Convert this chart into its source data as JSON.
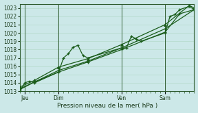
{
  "xlabel": "Pression niveau de la mer( hPa )",
  "bg_color": "#cce8e8",
  "grid_color": "#aaddcc",
  "line_color": "#1a5c1a",
  "ylim": [
    1013,
    1023.5
  ],
  "ytick_vals": [
    1013,
    1014,
    1015,
    1016,
    1017,
    1018,
    1019,
    1020,
    1021,
    1022,
    1023
  ],
  "xlim": [
    0,
    108
  ],
  "day_labels": [
    "Jeu",
    "Dim",
    "Ven",
    "Sam"
  ],
  "day_positions": [
    3,
    24,
    63,
    90
  ],
  "series1_x": [
    0,
    3,
    6,
    9,
    24,
    27,
    30,
    33,
    36,
    39,
    42,
    63,
    66,
    69,
    72,
    75,
    90,
    93,
    96,
    99,
    105,
    108
  ],
  "series1_y": [
    1013.0,
    1014.0,
    1014.2,
    1014.0,
    1015.3,
    1017.0,
    1017.5,
    1018.3,
    1018.5,
    1017.3,
    1017.0,
    1018.2,
    1018.2,
    1019.6,
    1019.3,
    1019.0,
    1020.0,
    1022.0,
    1022.2,
    1022.8,
    1023.2,
    1022.8
  ],
  "series2_x": [
    0,
    9,
    24,
    42,
    63,
    90,
    108
  ],
  "series2_y": [
    1013.3,
    1014.1,
    1015.5,
    1016.6,
    1018.2,
    1020.5,
    1022.8
  ],
  "series3_x": [
    0,
    9,
    24,
    42,
    63,
    90,
    105,
    108
  ],
  "series3_y": [
    1013.5,
    1014.3,
    1015.9,
    1016.9,
    1018.6,
    1021.0,
    1023.3,
    1023.0
  ],
  "series4_x": [
    0,
    9,
    24,
    42,
    63,
    90,
    99,
    108
  ],
  "series4_y": [
    1013.2,
    1014.1,
    1015.3,
    1016.5,
    1018.0,
    1020.1,
    1022.3,
    1022.8
  ]
}
